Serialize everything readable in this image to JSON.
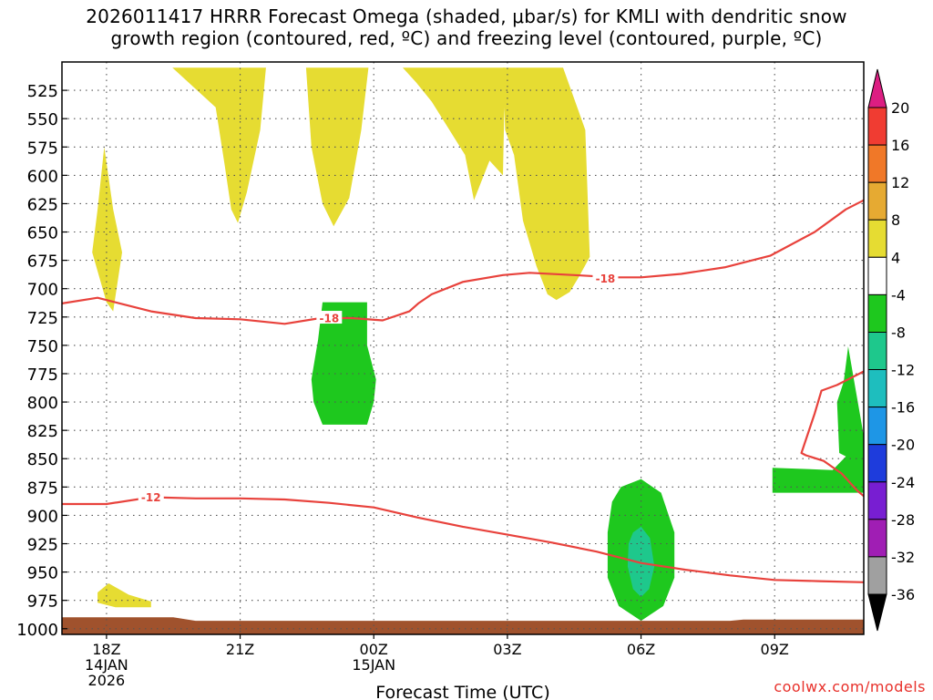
{
  "header": {
    "title_line1": "2026011417 HRRR Forecast Omega (shaded, μbar/s) for KMLI with dendritic snow",
    "title_line2": "growth region (contoured, red, ºC) and freezing level (contoured, purple, ºC)"
  },
  "credit": "coolwx.com/models",
  "chart_data": {
    "type": "contour",
    "title": "2026011417 HRRR Forecast Omega (shaded, μbar/s) for KMLI with dendritic snow growth region (contoured, red, ºC) and freezing level (contoured, purple, ºC)",
    "xlabel": "Forecast Time (UTC)",
    "ylabel": "",
    "x_range_hours_since_2026-01-14_18Z": [
      -1,
      17
    ],
    "y_range_hPa": [
      500,
      1005
    ],
    "y_axis_inverted": true,
    "grid": true,
    "x_ticks": [
      {
        "hour": 0,
        "label": "18Z",
        "date_label": "14JAN",
        "year_label": "2026"
      },
      {
        "hour": 3,
        "label": "21Z",
        "date_label": "",
        "year_label": ""
      },
      {
        "hour": 6,
        "label": "00Z",
        "date_label": "15JAN",
        "year_label": ""
      },
      {
        "hour": 9,
        "label": "03Z",
        "date_label": "",
        "year_label": ""
      },
      {
        "hour": 12,
        "label": "06Z",
        "date_label": "",
        "year_label": ""
      },
      {
        "hour": 15,
        "label": "09Z",
        "date_label": "",
        "year_label": ""
      }
    ],
    "y_ticks": [
      525,
      550,
      575,
      600,
      625,
      650,
      675,
      700,
      725,
      750,
      775,
      800,
      825,
      850,
      875,
      900,
      925,
      950,
      975,
      1000
    ],
    "colorbar": {
      "labels": [
        "20",
        "16",
        "12",
        "8",
        "4",
        "-4",
        "-8",
        "-12",
        "-16",
        "-20",
        "-24",
        "-28",
        "-32",
        "-36"
      ],
      "bins": [
        {
          "color": "#dc1e82"
        },
        {
          "color": "#f03c32"
        },
        {
          "color": "#f07828"
        },
        {
          "color": "#e6aa32"
        },
        {
          "color": "#e6dc32"
        },
        {
          "color": "#ffffff"
        },
        {
          "color": "#1ec81e"
        },
        {
          "color": "#1ec88c"
        },
        {
          "color": "#1ebebe"
        },
        {
          "color": "#1e96e6"
        },
        {
          "color": "#1e3cdc"
        },
        {
          "color": "#781ed2"
        },
        {
          "color": "#a01eb4"
        },
        {
          "color": "#a0a0a0"
        },
        {
          "color": "#000000"
        }
      ]
    },
    "omega_regions": [
      {
        "name": "ascent-column-1",
        "level": "4 to 8",
        "color": "#e6dc32",
        "points": [
          [
            -0.05,
            575
          ],
          [
            0.15,
            630
          ],
          [
            0.35,
            668
          ],
          [
            0.15,
            720
          ],
          [
            0.0,
            712
          ],
          [
            -0.32,
            668
          ],
          [
            -0.2,
            630
          ]
        ]
      },
      {
        "name": "ascent-column-2",
        "level": "4 to 8",
        "color": "#e6dc32",
        "points": [
          [
            1.48,
            505
          ],
          [
            3.58,
            505
          ],
          [
            3.45,
            560
          ],
          [
            3.15,
            615
          ],
          [
            2.95,
            642
          ],
          [
            2.8,
            630
          ],
          [
            2.65,
            590
          ],
          [
            2.45,
            540
          ]
        ]
      },
      {
        "name": "ascent-column-3",
        "level": "4 to 8",
        "color": "#e6dc32",
        "points": [
          [
            4.48,
            505
          ],
          [
            5.88,
            505
          ],
          [
            5.72,
            560
          ],
          [
            5.45,
            620
          ],
          [
            5.1,
            645
          ],
          [
            4.85,
            625
          ],
          [
            4.6,
            575
          ]
        ]
      },
      {
        "name": "ascent-column-4",
        "level": "4 to 8",
        "color": "#e6dc32",
        "points": [
          [
            6.65,
            505
          ],
          [
            8.95,
            505
          ],
          [
            8.9,
            600
          ],
          [
            8.6,
            587
          ],
          [
            8.25,
            622
          ],
          [
            8.05,
            582
          ],
          [
            7.7,
            560
          ],
          [
            7.3,
            535
          ],
          [
            6.95,
            518
          ]
        ]
      },
      {
        "name": "ascent-column-5",
        "level": "4 to 8",
        "color": "#e6dc32",
        "points": [
          [
            8.9,
            505
          ],
          [
            10.25,
            505
          ],
          [
            10.75,
            560
          ],
          [
            10.85,
            672
          ],
          [
            10.6,
            690
          ],
          [
            10.4,
            703
          ],
          [
            10.1,
            710
          ],
          [
            9.9,
            705
          ],
          [
            9.65,
            680
          ],
          [
            9.35,
            640
          ],
          [
            9.15,
            582
          ],
          [
            8.95,
            560
          ]
        ]
      },
      {
        "name": "ascent-blob-low",
        "level": "4 to 8",
        "color": "#e6dc32",
        "points": [
          [
            -0.2,
            968
          ],
          [
            0.05,
            960
          ],
          [
            0.5,
            970
          ],
          [
            1.0,
            976
          ],
          [
            1.0,
            981
          ],
          [
            0.2,
            981
          ],
          [
            -0.2,
            977
          ]
        ]
      },
      {
        "name": "descent-blob-1",
        "level": "-4 to -8",
        "color": "#1ec81e",
        "points": [
          [
            4.85,
            712
          ],
          [
            5.85,
            712
          ],
          [
            5.85,
            750
          ],
          [
            6.05,
            780
          ],
          [
            6.0,
            800
          ],
          [
            5.85,
            820
          ],
          [
            4.85,
            820
          ],
          [
            4.65,
            800
          ],
          [
            4.6,
            780
          ],
          [
            4.75,
            745
          ]
        ]
      },
      {
        "name": "descent-blob-2",
        "level": "-4 to -8",
        "color": "#1ec81e",
        "points": [
          [
            11.55,
            875
          ],
          [
            12.0,
            868
          ],
          [
            12.45,
            880
          ],
          [
            12.75,
            915
          ],
          [
            12.75,
            955
          ],
          [
            12.5,
            980
          ],
          [
            12.0,
            993
          ],
          [
            11.5,
            980
          ],
          [
            11.25,
            955
          ],
          [
            11.25,
            915
          ],
          [
            11.35,
            888
          ]
        ]
      },
      {
        "name": "descent-blob-2-core",
        "level": "-8 to -12",
        "color": "#1ec88c",
        "points": [
          [
            11.82,
            915
          ],
          [
            12.0,
            910
          ],
          [
            12.2,
            920
          ],
          [
            12.3,
            945
          ],
          [
            12.18,
            965
          ],
          [
            12.0,
            972
          ],
          [
            11.82,
            965
          ],
          [
            11.7,
            945
          ],
          [
            11.72,
            925
          ]
        ]
      },
      {
        "name": "descent-band-east",
        "level": "-4 to -8",
        "color": "#1ec81e",
        "points": [
          [
            14.95,
            858
          ],
          [
            16.3,
            860
          ],
          [
            16.6,
            848
          ],
          [
            16.45,
            845
          ],
          [
            16.4,
            800
          ],
          [
            16.55,
            782
          ],
          [
            16.65,
            751
          ],
          [
            16.8,
            785
          ],
          [
            17.0,
            830
          ],
          [
            17.0,
            880
          ],
          [
            15.5,
            880
          ],
          [
            14.95,
            880
          ]
        ]
      }
    ],
    "dgz_contours": [
      {
        "name": "minus-18-contour",
        "label": "-18",
        "label_at": [
          5.0,
          726
        ],
        "label2": "-18",
        "label2_at": [
          11.2,
          691
        ],
        "color": "#e8423c",
        "points": [
          [
            -1.0,
            713
          ],
          [
            -0.2,
            708
          ],
          [
            0.3,
            713
          ],
          [
            1.0,
            720
          ],
          [
            2.0,
            726
          ],
          [
            3.0,
            727
          ],
          [
            4.0,
            731
          ],
          [
            4.8,
            726
          ],
          [
            5.5,
            726
          ],
          [
            6.2,
            728
          ],
          [
            6.8,
            720
          ],
          [
            7.0,
            713
          ],
          [
            7.3,
            705
          ],
          [
            8.0,
            694
          ],
          [
            8.9,
            688
          ],
          [
            9.5,
            686
          ],
          [
            10.5,
            688
          ],
          [
            11.4,
            690
          ],
          [
            12.0,
            690
          ],
          [
            12.9,
            687
          ],
          [
            13.9,
            681
          ],
          [
            14.9,
            671
          ],
          [
            15.9,
            650
          ],
          [
            16.6,
            630
          ],
          [
            17.0,
            622
          ]
        ]
      },
      {
        "name": "minus-12-contour",
        "label": "-12",
        "label_at": [
          1.0,
          884
        ],
        "color": "#e8423c",
        "points": [
          [
            -1.0,
            890
          ],
          [
            0.0,
            890
          ],
          [
            1.0,
            884
          ],
          [
            2.0,
            885
          ],
          [
            3.0,
            885
          ],
          [
            4.0,
            886
          ],
          [
            5.0,
            889
          ],
          [
            6.0,
            893
          ],
          [
            7.0,
            902
          ],
          [
            8.0,
            910
          ],
          [
            9.0,
            917
          ],
          [
            10.0,
            924
          ],
          [
            11.0,
            932
          ],
          [
            12.0,
            942
          ],
          [
            13.0,
            948
          ],
          [
            14.0,
            953
          ],
          [
            15.0,
            957
          ],
          [
            16.0,
            958
          ],
          [
            17.0,
            959
          ]
        ]
      },
      {
        "name": "dgz-east-contour",
        "label": "",
        "color": "#e8423c",
        "points": [
          [
            17.0,
            773
          ],
          [
            16.4,
            785
          ],
          [
            16.05,
            790
          ],
          [
            15.9,
            810
          ],
          [
            15.6,
            845
          ],
          [
            15.7,
            847
          ],
          [
            16.1,
            852
          ],
          [
            16.5,
            863
          ],
          [
            16.85,
            878
          ],
          [
            17.0,
            883
          ]
        ]
      }
    ],
    "surface_terrain": {
      "color": "#a0522d",
      "top_hPa": 993,
      "left_top_hPa": 990
    }
  }
}
